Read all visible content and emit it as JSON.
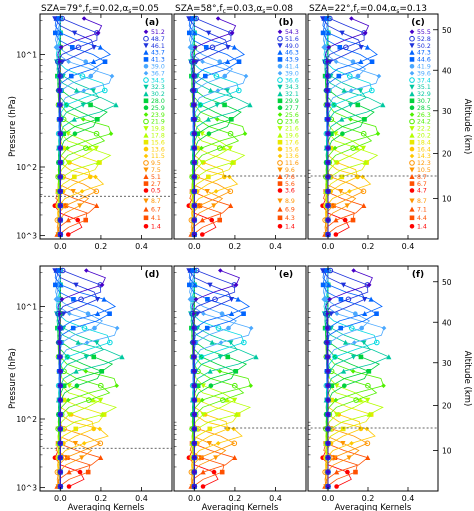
{
  "colors": [
    "#ff0000",
    "#ff5000",
    "#ff9600",
    "#ffc800",
    "#e8e800",
    "#b4ff00",
    "#50f000",
    "#00d23c",
    "#00c8a0",
    "#00d8e0",
    "#4aa8ff",
    "#0064ff",
    "#1e32dc",
    "#4600c8"
  ],
  "chart_data": [
    {
      "type": "line",
      "panel_label": "(a)",
      "title": "SZA=79°,f",
      "title_tail": "=0.02,α",
      "title_end": "=0.05",
      "title_sub1": "c",
      "title_sub2": "s",
      "xlabel": "",
      "ylabel": "Pressure (hPa)",
      "right_ylabel": "",
      "xticks": [
        "0.0",
        "0.2",
        "0.4"
      ],
      "yticks": [
        "10^3",
        "10^2",
        "10^1"
      ],
      "right_ticks": [],
      "xlim": [
        -0.1,
        0.55
      ],
      "peak_scale": 0.33,
      "tropopause_frac": 0.81,
      "dotted_start": 0.0,
      "legend_altitudes_km": [
        "51.2",
        "48.7",
        "46.1",
        "43.7",
        "41.3",
        "39.0",
        "36.7",
        "34.5",
        "32.3",
        "30.2",
        "28.0",
        "25.9",
        "23.9",
        "21.9",
        "19.8",
        "17.8",
        "15.6",
        "13.6",
        "11.5",
        "9.5",
        "7.5",
        "5.1",
        "2.7",
        "0.5"
      ],
      "legend_lower": [
        "8.7",
        "6.7",
        "4.1",
        "1.4"
      ]
    },
    {
      "type": "line",
      "panel_label": "(b)",
      "title": "SZA=58°,f",
      "title_tail": "=0.03,α",
      "title_end": "=0.08",
      "title_sub1": "c",
      "title_sub2": "s",
      "xlabel": "",
      "ylabel": "",
      "right_ylabel": "",
      "xticks": [
        "0.0",
        "0.2",
        "0.4"
      ],
      "yticks": [],
      "right_ticks": [],
      "xlim": [
        -0.1,
        0.55
      ],
      "peak_scale": 0.33,
      "tropopause_frac": 0.72,
      "dotted_start": 0.38,
      "legend_altitudes_km": [
        "54.3",
        "51.6",
        "49.0",
        "46.3",
        "43.9",
        "41.4",
        "39.0",
        "36.6",
        "34.3",
        "32.1",
        "29.9",
        "27.7",
        "25.6",
        "23.6",
        "21.6",
        "19.6",
        "17.6",
        "15.6",
        "13.6",
        "11.6",
        "9.6",
        "7.6",
        "5.6",
        "3.6"
      ],
      "legend_lower": [
        "8.9",
        "6.9",
        "4.3",
        "1.4"
      ]
    },
    {
      "type": "line",
      "panel_label": "(c)",
      "title": "SZA=22°,f",
      "title_tail": "=0.04,α",
      "title_end": "=0.13",
      "title_sub1": "c",
      "title_sub2": "s",
      "xlabel": "",
      "ylabel": "",
      "right_ylabel": "Altitude (km)",
      "xticks": [
        "0.0",
        "0.2",
        "0.4"
      ],
      "yticks": [],
      "right_ticks": [
        "10",
        "20",
        "30",
        "40",
        "50"
      ],
      "xlim": [
        -0.1,
        0.55
      ],
      "peak_scale": 0.33,
      "tropopause_frac": 0.72,
      "dotted_start": 0.02,
      "legend_altitudes_km": [
        "55.5",
        "52.8",
        "50.2",
        "47.3",
        "44.6",
        "41.9",
        "39.6",
        "37.4",
        "35.1",
        "32.9",
        "30.7",
        "28.5",
        "26.3",
        "24.2",
        "22.2",
        "20.2",
        "18.4",
        "16.4",
        "14.3",
        "12.3",
        "10.5",
        "8.7",
        "6.7",
        "4.7"
      ],
      "legend_lower": [
        "8.7",
        "7.1",
        "4.4",
        "1.4"
      ]
    },
    {
      "type": "line",
      "panel_label": "(d)",
      "title": "",
      "title_tail": "",
      "title_end": "",
      "title_sub1": "",
      "title_sub2": "",
      "xlabel": "Averaging Kernels",
      "ylabel": "Pressure (hPa)",
      "right_ylabel": "",
      "xticks": [
        "0.0",
        "0.2",
        "0.4"
      ],
      "yticks": [
        "10^3",
        "10^2",
        "10^1"
      ],
      "right_ticks": [],
      "xlim": [
        -0.1,
        0.55
      ],
      "peak_scale": 0.36,
      "tropopause_frac": 0.81,
      "dotted_start": 0.02,
      "legend_altitudes_km": [],
      "legend_lower": []
    },
    {
      "type": "line",
      "panel_label": "(e)",
      "title": "",
      "title_tail": "",
      "title_end": "",
      "title_sub1": "",
      "title_sub2": "",
      "xlabel": "Averaging Kernels",
      "ylabel": "",
      "right_ylabel": "",
      "xticks": [
        "0.0",
        "0.2",
        "0.4"
      ],
      "yticks": [],
      "right_ticks": [],
      "xlim": [
        -0.1,
        0.55
      ],
      "peak_scale": 0.36,
      "tropopause_frac": 0.72,
      "dotted_start": 0.38,
      "legend_altitudes_km": [],
      "legend_lower": []
    },
    {
      "type": "line",
      "panel_label": "(f)",
      "title": "",
      "title_tail": "",
      "title_end": "",
      "title_sub1": "",
      "title_sub2": "",
      "xlabel": "Averaging Kernels",
      "ylabel": "",
      "right_ylabel": "Altitude (km)",
      "xticks": [
        "0.0",
        "0.2",
        "0.4"
      ],
      "yticks": [],
      "right_ticks": [
        "10",
        "20",
        "30",
        "40",
        "50"
      ],
      "xlim": [
        -0.1,
        0.55
      ],
      "peak_scale": 0.36,
      "tropopause_frac": 0.72,
      "dotted_start": 0.02,
      "legend_altitudes_km": [],
      "legend_lower": []
    }
  ]
}
